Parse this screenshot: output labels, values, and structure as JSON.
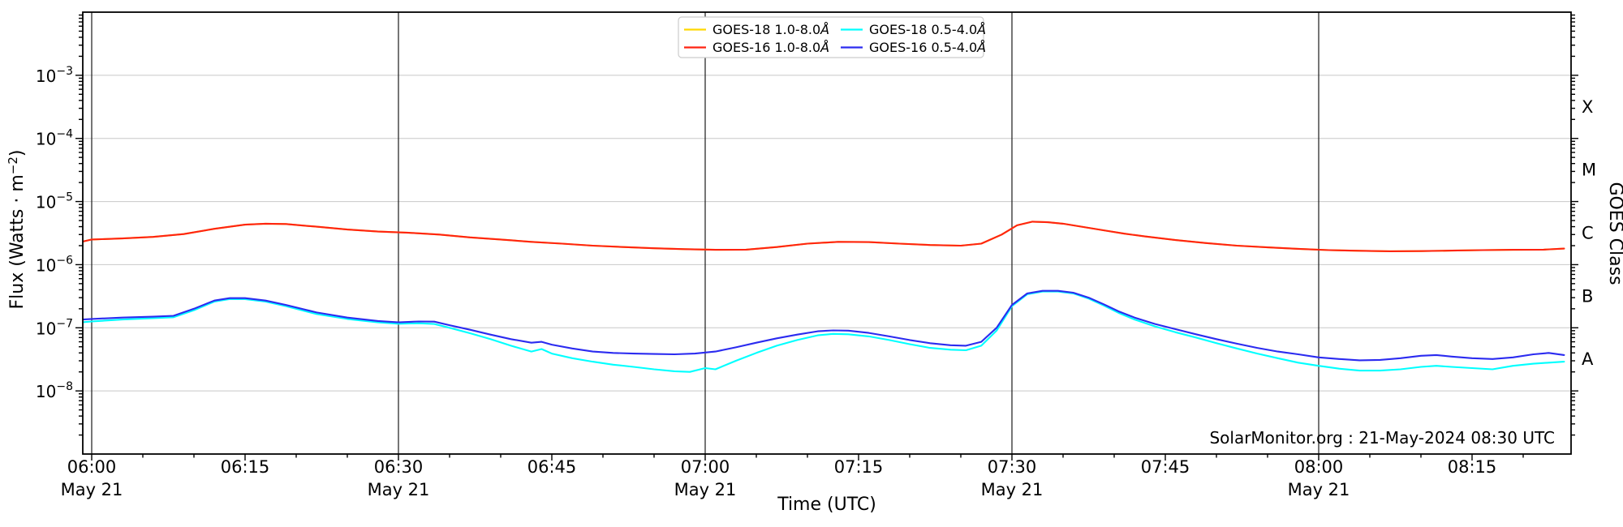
{
  "annotation": {
    "text": "SolarMonitor.org : 21-May-2024 08:30 UTC"
  },
  "chart_data": {
    "type": "line",
    "title": "",
    "x_axis": {
      "label": "Time (UTC)",
      "start_label": "06:00",
      "end_label": "08:24",
      "minor_tick_every_min": 5,
      "date_gridline_ticks_min": [
        0,
        30,
        60,
        90,
        120
      ],
      "major_ticks": [
        {
          "t": 0,
          "label": "06:00",
          "date": "May 21"
        },
        {
          "t": 15,
          "label": "06:15"
        },
        {
          "t": 30,
          "label": "06:30",
          "date": "May 21"
        },
        {
          "t": 45,
          "label": "06:45"
        },
        {
          "t": 60,
          "label": "07:00",
          "date": "May 21"
        },
        {
          "t": 75,
          "label": "07:15"
        },
        {
          "t": 90,
          "label": "07:30",
          "date": "May 21"
        },
        {
          "t": 105,
          "label": "07:45"
        },
        {
          "t": 120,
          "label": "08:00",
          "date": "May 21"
        },
        {
          "t": 135,
          "label": "08:15"
        }
      ]
    },
    "y_axis": {
      "label_pre": "Flux (Watts · m",
      "label_sup": "−2",
      "label_post": ")",
      "scale": "log",
      "ylim": [
        1e-09,
        0.01
      ],
      "labeled_decade_exponents": [
        -3,
        -4,
        -5,
        -6,
        -7,
        -8
      ]
    },
    "right_axis": {
      "label": "GOES Class",
      "classes": [
        {
          "label": "X",
          "flux_mid": 0.000316
        },
        {
          "label": "M",
          "flux_mid": 3.16e-05
        },
        {
          "label": "C",
          "flux_mid": 3.16e-06
        },
        {
          "label": "B",
          "flux_mid": 3.16e-07
        },
        {
          "label": "A",
          "flux_mid": 3.16e-08
        }
      ]
    },
    "grid": {
      "horizontal_decades": true,
      "vertical_every_30min": true
    },
    "colors": {
      "goes18_long": "#ffd800",
      "goes16_long": "#ff2311",
      "goes18_short": "#00ffff",
      "goes16_short": "#2b2bf0",
      "h_grid": "#c8c8c8",
      "date_line": "#1a1a1a",
      "spine": "#000000",
      "legend_border": "#cccccc"
    },
    "legend": {
      "position": "top-center",
      "items": [
        {
          "label": "GOES-18 1.0-8.0",
          "unit": "Å",
          "series_key": "goes18_long"
        },
        {
          "label": "GOES-16 1.0-8.0",
          "unit": "Å",
          "series_key": "goes16_long"
        },
        {
          "label": "GOES-18 0.5-4.0",
          "unit": "Å",
          "series_key": "goes18_short"
        },
        {
          "label": "GOES-16 0.5-4.0",
          "unit": "Å",
          "series_key": "goes16_short"
        }
      ]
    },
    "series": [
      {
        "key": "goes18_long",
        "name": "GOES-18 1.0-8.0Å",
        "points": [
          [
            -1,
            2.3e-06
          ],
          [
            0,
            2.5e-06
          ],
          [
            3,
            2.6e-06
          ],
          [
            6,
            2.75e-06
          ],
          [
            9,
            3.05e-06
          ],
          [
            12,
            3.7e-06
          ],
          [
            15,
            4.3e-06
          ],
          [
            17,
            4.45e-06
          ],
          [
            19,
            4.4e-06
          ],
          [
            22,
            4e-06
          ],
          [
            25,
            3.6e-06
          ],
          [
            28,
            3.35e-06
          ],
          [
            31,
            3.2e-06
          ],
          [
            34,
            3e-06
          ],
          [
            37,
            2.7e-06
          ],
          [
            40,
            2.5e-06
          ],
          [
            43,
            2.3e-06
          ],
          [
            46,
            2.15e-06
          ],
          [
            49,
            2e-06
          ],
          [
            52,
            1.9e-06
          ],
          [
            55,
            1.82e-06
          ],
          [
            58,
            1.76e-06
          ],
          [
            61,
            1.72e-06
          ],
          [
            64,
            1.73e-06
          ],
          [
            67,
            1.9e-06
          ],
          [
            70,
            2.15e-06
          ],
          [
            73,
            2.3e-06
          ],
          [
            76,
            2.28e-06
          ],
          [
            79,
            2.15e-06
          ],
          [
            82,
            2.05e-06
          ],
          [
            85,
            2e-06
          ],
          [
            87,
            2.15e-06
          ],
          [
            89,
            3e-06
          ],
          [
            90.5,
            4.2e-06
          ],
          [
            92,
            4.8e-06
          ],
          [
            93.5,
            4.7e-06
          ],
          [
            95,
            4.45e-06
          ],
          [
            97,
            3.95e-06
          ],
          [
            99,
            3.5e-06
          ],
          [
            101,
            3.1e-06
          ],
          [
            103,
            2.8e-06
          ],
          [
            106,
            2.45e-06
          ],
          [
            109,
            2.2e-06
          ],
          [
            112,
            2e-06
          ],
          [
            115,
            1.88e-06
          ],
          [
            118,
            1.78e-06
          ],
          [
            121,
            1.7e-06
          ],
          [
            124,
            1.66e-06
          ],
          [
            127,
            1.63e-06
          ],
          [
            130,
            1.64e-06
          ],
          [
            133,
            1.67e-06
          ],
          [
            136,
            1.7e-06
          ],
          [
            139,
            1.72e-06
          ],
          [
            142,
            1.73e-06
          ],
          [
            144,
            1.8e-06
          ]
        ]
      },
      {
        "key": "goes16_long",
        "name": "GOES-16 1.0-8.0Å",
        "points": [
          [
            -1,
            2.3e-06
          ],
          [
            0,
            2.5e-06
          ],
          [
            3,
            2.6e-06
          ],
          [
            6,
            2.75e-06
          ],
          [
            9,
            3.05e-06
          ],
          [
            12,
            3.7e-06
          ],
          [
            15,
            4.3e-06
          ],
          [
            17,
            4.45e-06
          ],
          [
            19,
            4.4e-06
          ],
          [
            22,
            4e-06
          ],
          [
            25,
            3.6e-06
          ],
          [
            28,
            3.35e-06
          ],
          [
            31,
            3.2e-06
          ],
          [
            34,
            3e-06
          ],
          [
            37,
            2.7e-06
          ],
          [
            40,
            2.5e-06
          ],
          [
            43,
            2.3e-06
          ],
          [
            46,
            2.15e-06
          ],
          [
            49,
            2e-06
          ],
          [
            52,
            1.9e-06
          ],
          [
            55,
            1.82e-06
          ],
          [
            58,
            1.76e-06
          ],
          [
            61,
            1.72e-06
          ],
          [
            64,
            1.73e-06
          ],
          [
            67,
            1.9e-06
          ],
          [
            70,
            2.15e-06
          ],
          [
            73,
            2.3e-06
          ],
          [
            76,
            2.28e-06
          ],
          [
            79,
            2.15e-06
          ],
          [
            82,
            2.05e-06
          ],
          [
            85,
            2e-06
          ],
          [
            87,
            2.15e-06
          ],
          [
            89,
            3e-06
          ],
          [
            90.5,
            4.2e-06
          ],
          [
            92,
            4.8e-06
          ],
          [
            93.5,
            4.7e-06
          ],
          [
            95,
            4.45e-06
          ],
          [
            97,
            3.95e-06
          ],
          [
            99,
            3.5e-06
          ],
          [
            101,
            3.1e-06
          ],
          [
            103,
            2.8e-06
          ],
          [
            106,
            2.45e-06
          ],
          [
            109,
            2.2e-06
          ],
          [
            112,
            2e-06
          ],
          [
            115,
            1.88e-06
          ],
          [
            118,
            1.78e-06
          ],
          [
            121,
            1.7e-06
          ],
          [
            124,
            1.66e-06
          ],
          [
            127,
            1.63e-06
          ],
          [
            130,
            1.64e-06
          ],
          [
            133,
            1.67e-06
          ],
          [
            136,
            1.7e-06
          ],
          [
            139,
            1.72e-06
          ],
          [
            142,
            1.73e-06
          ],
          [
            144,
            1.8e-06
          ]
        ]
      },
      {
        "key": "goes18_short",
        "name": "GOES-18 0.5-4.0Å",
        "points": [
          [
            -1,
            1.22e-07
          ],
          [
            0,
            1.26e-07
          ],
          [
            3,
            1.35e-07
          ],
          [
            6,
            1.42e-07
          ],
          [
            8,
            1.47e-07
          ],
          [
            10,
            1.9e-07
          ],
          [
            12,
            2.6e-07
          ],
          [
            13.5,
            2.85e-07
          ],
          [
            15,
            2.85e-07
          ],
          [
            17,
            2.6e-07
          ],
          [
            19,
            2.2e-07
          ],
          [
            22,
            1.65e-07
          ],
          [
            25,
            1.38e-07
          ],
          [
            28,
            1.22e-07
          ],
          [
            30,
            1.16e-07
          ],
          [
            32,
            1.18e-07
          ],
          [
            33.5,
            1.15e-07
          ],
          [
            35,
            1e-07
          ],
          [
            37,
            8.2e-08
          ],
          [
            39,
            6.6e-08
          ],
          [
            41,
            5.2e-08
          ],
          [
            43,
            4.2e-08
          ],
          [
            44,
            4.6e-08
          ],
          [
            45,
            3.9e-08
          ],
          [
            47,
            3.3e-08
          ],
          [
            49,
            2.9e-08
          ],
          [
            51,
            2.6e-08
          ],
          [
            53,
            2.4e-08
          ],
          [
            55,
            2.2e-08
          ],
          [
            57,
            2.05e-08
          ],
          [
            58.5,
            2e-08
          ],
          [
            60,
            2.3e-08
          ],
          [
            61,
            2.2e-08
          ],
          [
            63,
            3e-08
          ],
          [
            65,
            4e-08
          ],
          [
            67,
            5.2e-08
          ],
          [
            69,
            6.4e-08
          ],
          [
            71,
            7.6e-08
          ],
          [
            72.5,
            8e-08
          ],
          [
            74,
            7.9e-08
          ],
          [
            76,
            7.3e-08
          ],
          [
            78,
            6.4e-08
          ],
          [
            80,
            5.5e-08
          ],
          [
            82,
            4.8e-08
          ],
          [
            84,
            4.5e-08
          ],
          [
            85.5,
            4.4e-08
          ],
          [
            87,
            5.2e-08
          ],
          [
            88.5,
            9e-08
          ],
          [
            90,
            2.2e-07
          ],
          [
            91.5,
            3.4e-07
          ],
          [
            93,
            3.75e-07
          ],
          [
            94.5,
            3.75e-07
          ],
          [
            96,
            3.5e-07
          ],
          [
            97.5,
            2.9e-07
          ],
          [
            99,
            2.25e-07
          ],
          [
            100.5,
            1.7e-07
          ],
          [
            102,
            1.35e-07
          ],
          [
            104,
            1.05e-07
          ],
          [
            106,
            8.5e-08
          ],
          [
            108,
            7e-08
          ],
          [
            110,
            5.7e-08
          ],
          [
            112,
            4.7e-08
          ],
          [
            114,
            3.9e-08
          ],
          [
            116,
            3.3e-08
          ],
          [
            118,
            2.8e-08
          ],
          [
            120,
            2.5e-08
          ],
          [
            122,
            2.25e-08
          ],
          [
            124,
            2.1e-08
          ],
          [
            126,
            2.1e-08
          ],
          [
            128,
            2.2e-08
          ],
          [
            130,
            2.4e-08
          ],
          [
            131.5,
            2.5e-08
          ],
          [
            133,
            2.4e-08
          ],
          [
            135,
            2.3e-08
          ],
          [
            137,
            2.2e-08
          ],
          [
            139,
            2.5e-08
          ],
          [
            141,
            2.7e-08
          ],
          [
            142.5,
            2.8e-08
          ],
          [
            144,
            2.9e-08
          ]
        ]
      },
      {
        "key": "goes16_short",
        "name": "GOES-16 0.5-4.0Å",
        "points": [
          [
            -1,
            1.35e-07
          ],
          [
            0,
            1.38e-07
          ],
          [
            3,
            1.45e-07
          ],
          [
            6,
            1.5e-07
          ],
          [
            8,
            1.55e-07
          ],
          [
            10,
            2e-07
          ],
          [
            12,
            2.7e-07
          ],
          [
            13.5,
            2.95e-07
          ],
          [
            15,
            2.95e-07
          ],
          [
            17,
            2.7e-07
          ],
          [
            19,
            2.3e-07
          ],
          [
            22,
            1.75e-07
          ],
          [
            25,
            1.45e-07
          ],
          [
            28,
            1.28e-07
          ],
          [
            30,
            1.22e-07
          ],
          [
            32,
            1.26e-07
          ],
          [
            33.5,
            1.25e-07
          ],
          [
            35,
            1.1e-07
          ],
          [
            37,
            9.3e-08
          ],
          [
            39,
            7.8e-08
          ],
          [
            41,
            6.6e-08
          ],
          [
            43,
            5.8e-08
          ],
          [
            44,
            6e-08
          ],
          [
            45,
            5.4e-08
          ],
          [
            47,
            4.7e-08
          ],
          [
            49,
            4.2e-08
          ],
          [
            51,
            4e-08
          ],
          [
            53,
            3.9e-08
          ],
          [
            55,
            3.85e-08
          ],
          [
            57,
            3.8e-08
          ],
          [
            59,
            3.9e-08
          ],
          [
            61,
            4.2e-08
          ],
          [
            63,
            4.9e-08
          ],
          [
            65,
            5.8e-08
          ],
          [
            67,
            6.8e-08
          ],
          [
            69,
            7.8e-08
          ],
          [
            71,
            8.8e-08
          ],
          [
            72.5,
            9.1e-08
          ],
          [
            74,
            9e-08
          ],
          [
            76,
            8.3e-08
          ],
          [
            78,
            7.3e-08
          ],
          [
            80,
            6.4e-08
          ],
          [
            82,
            5.7e-08
          ],
          [
            84,
            5.3e-08
          ],
          [
            85.5,
            5.2e-08
          ],
          [
            87,
            6e-08
          ],
          [
            88.5,
            1e-07
          ],
          [
            90,
            2.3e-07
          ],
          [
            91.5,
            3.5e-07
          ],
          [
            93,
            3.85e-07
          ],
          [
            94.5,
            3.85e-07
          ],
          [
            96,
            3.6e-07
          ],
          [
            97.5,
            3e-07
          ],
          [
            99,
            2.35e-07
          ],
          [
            100.5,
            1.8e-07
          ],
          [
            102,
            1.45e-07
          ],
          [
            104,
            1.15e-07
          ],
          [
            106,
            9.5e-08
          ],
          [
            108,
            7.9e-08
          ],
          [
            110,
            6.6e-08
          ],
          [
            112,
            5.6e-08
          ],
          [
            114,
            4.8e-08
          ],
          [
            116,
            4.2e-08
          ],
          [
            118,
            3.8e-08
          ],
          [
            120,
            3.4e-08
          ],
          [
            122,
            3.2e-08
          ],
          [
            124,
            3.05e-08
          ],
          [
            126,
            3.1e-08
          ],
          [
            128,
            3.3e-08
          ],
          [
            130,
            3.6e-08
          ],
          [
            131.5,
            3.7e-08
          ],
          [
            133,
            3.5e-08
          ],
          [
            135,
            3.3e-08
          ],
          [
            137,
            3.2e-08
          ],
          [
            139,
            3.4e-08
          ],
          [
            141,
            3.8e-08
          ],
          [
            142.5,
            4e-08
          ],
          [
            144,
            3.7e-08
          ]
        ]
      }
    ]
  }
}
